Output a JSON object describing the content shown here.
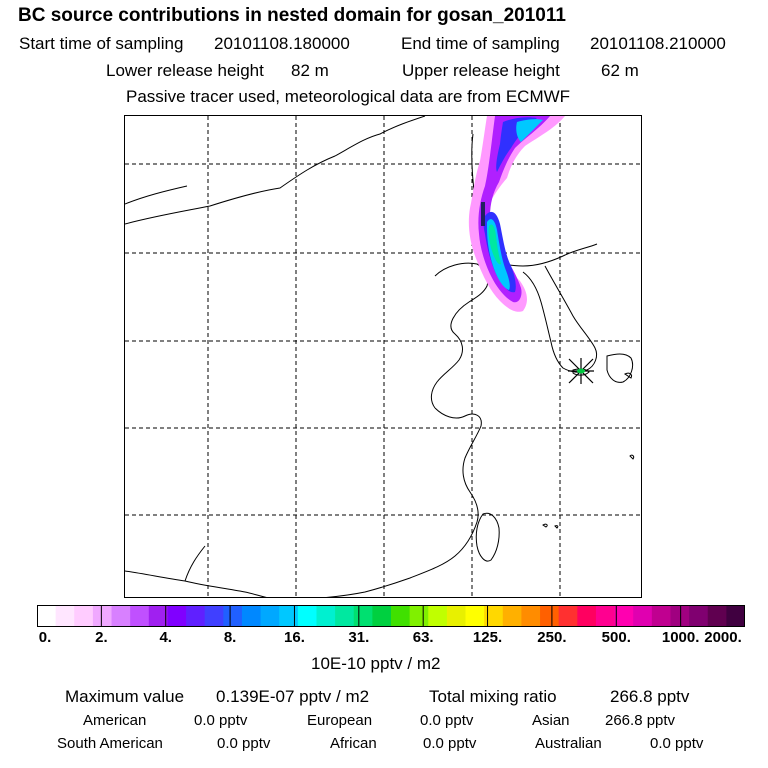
{
  "header": {
    "title": "BC  source contributions in nested domain for gosan_201011",
    "start_label": "Start time of sampling",
    "start_value": "20101108.180000",
    "end_label": "End time of sampling",
    "end_value": "20101108.210000",
    "lower_label": "Lower release height",
    "lower_value": "82 m",
    "upper_label": "Upper release height",
    "upper_value": "62 m",
    "tracer_note": "Passive tracer used, meteorological data are from ECMWF"
  },
  "colorbar": {
    "colors": [
      "#ffffff",
      "#ffe6ff",
      "#ffccff",
      "#f0a8ff",
      "#d880ff",
      "#c050ff",
      "#a020f0",
      "#8000ff",
      "#6020ff",
      "#4040ff",
      "#2060ff",
      "#0088ff",
      "#00a8ff",
      "#00c8ff",
      "#00ffff",
      "#00f0d0",
      "#00e8a0",
      "#00e070",
      "#00d040",
      "#40e000",
      "#80f000",
      "#c0ff00",
      "#e8f000",
      "#ffff00",
      "#ffd800",
      "#ffb000",
      "#ff8c00",
      "#ff6000",
      "#ff3030",
      "#ff0060",
      "#ff0090",
      "#ff00b0",
      "#e000b0",
      "#c00090",
      "#a00080",
      "#800070",
      "#600050",
      "#400040"
    ],
    "ticks": [
      "0.",
      "2.",
      "4.",
      "8.",
      "16.",
      "31.",
      "63.",
      "125.",
      "250.",
      "500.",
      "1000.",
      "2000."
    ],
    "units": "10E-10 pptv / m2"
  },
  "summary": {
    "max_label": "Maximum value",
    "max_value": "0.139E-07 pptv / m2",
    "total_label": "Total mixing ratio",
    "total_value": "266.8 pptv",
    "regions": [
      {
        "name": "American",
        "value": "0.0 pptv"
      },
      {
        "name": "European",
        "value": "0.0 pptv"
      },
      {
        "name": "Asian",
        "value": "266.8 pptv"
      },
      {
        "name": "South American",
        "value": "0.0 pptv"
      },
      {
        "name": "African",
        "value": "0.0 pptv"
      },
      {
        "name": "Australian",
        "value": "0.0 pptv"
      }
    ]
  },
  "map": {
    "plume_colors": {
      "outer": "#ff99ff",
      "mid": "#b020ff",
      "inner": "#3030ff",
      "core": "#00c8ff",
      "peak": "#00e8a0",
      "max": "#202060"
    },
    "receptor_marker_color": "#000000"
  }
}
